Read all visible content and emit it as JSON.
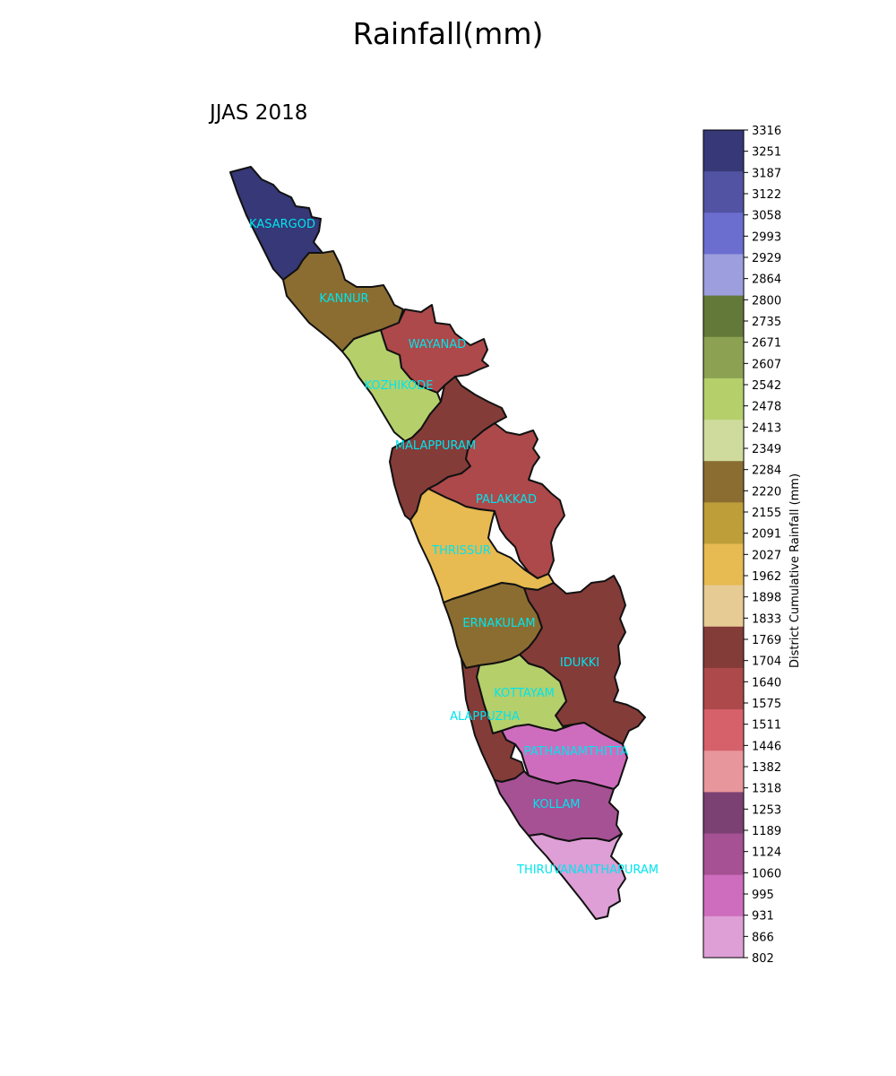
{
  "title": "Rainfall(mm)",
  "subtitle": "JJAS 2018",
  "colorbar": {
    "label": "District Cumulative Rainfall (mm)",
    "ticks": [
      "3316",
      "3251",
      "3187",
      "3122",
      "3058",
      "2993",
      "2929",
      "2864",
      "2800",
      "2735",
      "2671",
      "2607",
      "2542",
      "2478",
      "2413",
      "2349",
      "2284",
      "2220",
      "2155",
      "2091",
      "2027",
      "1962",
      "1898",
      "1833",
      "1769",
      "1704",
      "1640",
      "1575",
      "1511",
      "1446",
      "1382",
      "1318",
      "1253",
      "1189",
      "1124",
      "1060",
      "995",
      "931",
      "866",
      "802"
    ],
    "bands": [
      "#363877",
      "#5353a3",
      "#6b6ecf",
      "#9c9ede",
      "#637939",
      "#8ca252",
      "#b5cf6b",
      "#cedb9c",
      "#8c6d31",
      "#bd9e39",
      "#e7ba52",
      "#e7cb94",
      "#843c39",
      "#ad494a",
      "#d6616b",
      "#e7969c",
      "#7b4173",
      "#a55194",
      "#ce6dbd",
      "#de9ed6"
    ]
  },
  "districts": [
    {
      "name": "KASARGOD",
      "color": "#363877"
    },
    {
      "name": "KANNUR",
      "color": "#8c6d31"
    },
    {
      "name": "WAYANAD",
      "color": "#ad494a"
    },
    {
      "name": "KOZHIKODE",
      "color": "#b5cf6b"
    },
    {
      "name": "MALAPPURAM",
      "color": "#843c39"
    },
    {
      "name": "PALAKKAD",
      "color": "#ad494a"
    },
    {
      "name": "THRISSUR",
      "color": "#e7ba52"
    },
    {
      "name": "ERNAKULAM",
      "color": "#8c6d31"
    },
    {
      "name": "IDUKKI",
      "color": "#843c39"
    },
    {
      "name": "KOTTAYAM",
      "color": "#b5cf6b"
    },
    {
      "name": "ALAPPUZHA",
      "color": "#843c39"
    },
    {
      "name": "PATHANAMTHITTA",
      "color": "#ce6dbd"
    },
    {
      "name": "KOLLAM",
      "color": "#a55194"
    },
    {
      "name": "THIRUVANANTHAPURAM",
      "color": "#de9ed6"
    }
  ]
}
